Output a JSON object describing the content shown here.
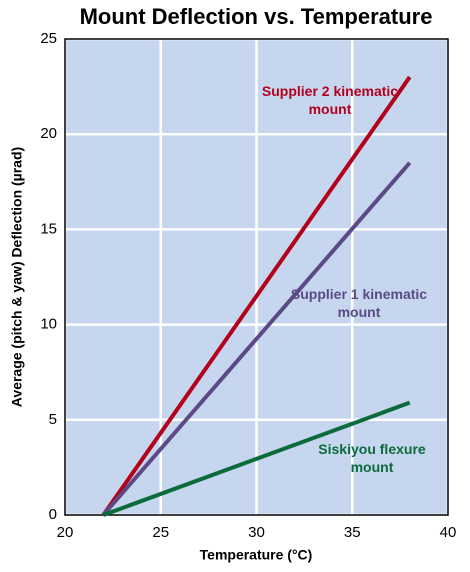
{
  "chart_data": {
    "type": "line",
    "title": "Mount Deflection vs. Temperature",
    "x_label": "Temperature (°C)",
    "y_label": "Average (pitch & yaw) Deflection (µrad)",
    "x": [
      22,
      38
    ],
    "series": [
      {
        "name": "Supplier 2 kinematic mount",
        "color": "#b3001b",
        "values": [
          0,
          23
        ]
      },
      {
        "name": "Supplier 1 kinematic mount",
        "color": "#5b4a86",
        "values": [
          0,
          18.5
        ]
      },
      {
        "name": "Siskiyou flexure mount",
        "color": "#0b6b3a",
        "values": [
          0,
          5.9
        ]
      }
    ],
    "xlim": [
      20,
      40
    ],
    "xticks": [
      20,
      25,
      30,
      35,
      40
    ],
    "ylim": [
      0,
      25
    ],
    "yticks": [
      0,
      5,
      10,
      15,
      20,
      25
    ],
    "grid": true
  }
}
